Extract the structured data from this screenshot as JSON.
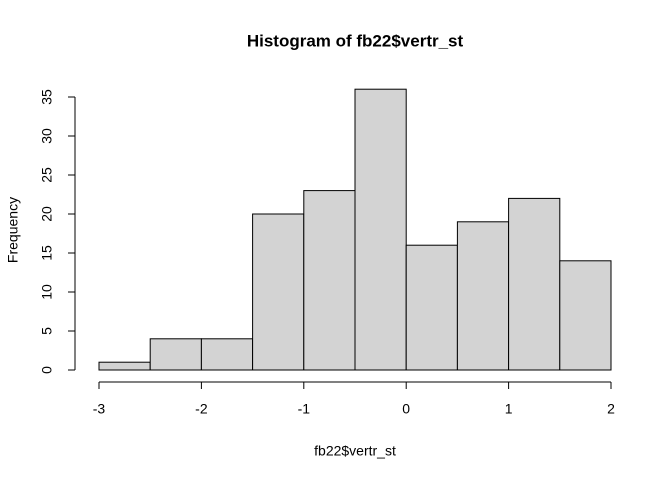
{
  "chart_data": {
    "type": "histogram",
    "title": "Histogram of fb22$vertr_st",
    "xlabel": "fb22$vertr_st",
    "ylabel": "Frequency",
    "bins": [
      -3,
      -2.5,
      -2,
      -1.5,
      -1,
      -0.5,
      0,
      0.5,
      1,
      1.5,
      2
    ],
    "values": [
      1,
      4,
      4,
      20,
      23,
      36,
      16,
      19,
      22,
      14
    ],
    "color": "#d3d3d3",
    "xlim": [
      -3,
      2
    ],
    "xticks": [
      -3,
      -2,
      -1,
      0,
      1,
      2
    ],
    "ylim": [
      0,
      36
    ],
    "yticks": [
      0,
      5,
      10,
      15,
      20,
      25,
      30,
      35
    ]
  }
}
